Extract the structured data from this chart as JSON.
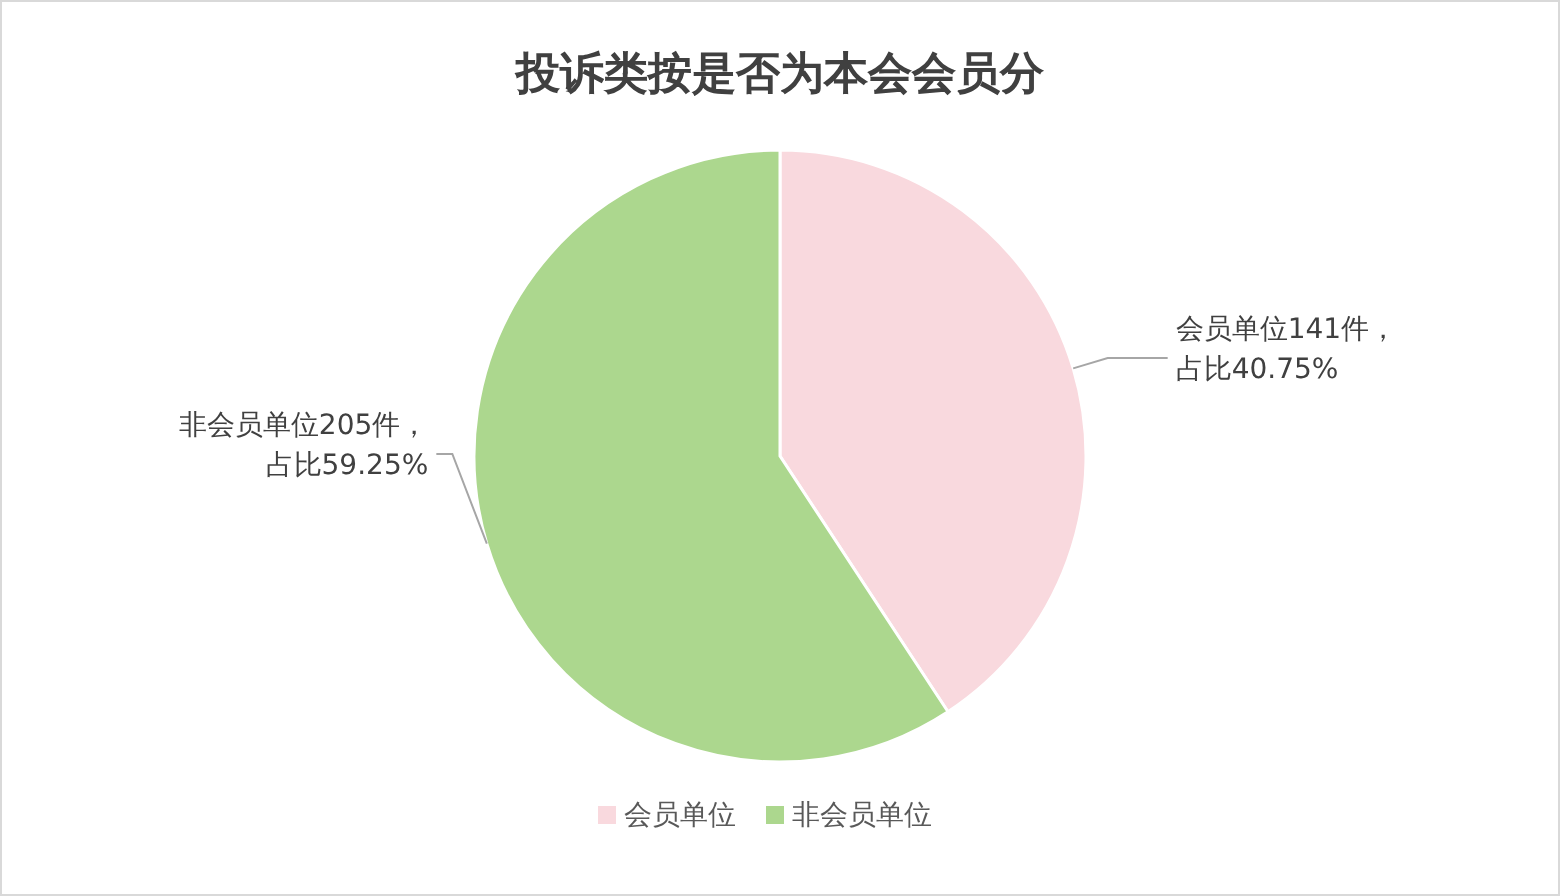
{
  "chart_data": {
    "type": "pie",
    "title": "投诉类按是否为本会会员分",
    "categories": [
      "会员单位",
      "非会员单位"
    ],
    "values": [
      141,
      205
    ],
    "colors": [
      "#f9d9de",
      "#acd78e"
    ],
    "value_labels": [
      "会员单位141件，占比40.75%",
      "非会员单位205件，占比59.25%"
    ],
    "legend": "bottom"
  }
}
